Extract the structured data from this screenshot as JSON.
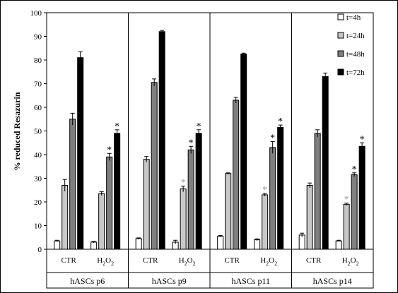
{
  "chart_data": {
    "type": "bar",
    "title": "",
    "ylabel": "% reduced Resazurin",
    "ylim": [
      0,
      100
    ],
    "yticks": [
      0,
      10,
      20,
      30,
      40,
      50,
      60,
      70,
      80,
      90,
      100
    ],
    "panels": [
      "hASCs p6",
      "hASCs p9",
      "hASCs p11",
      "hASCs p14"
    ],
    "groups": [
      "CTR",
      "H2O2"
    ],
    "series": [
      {
        "name": "t=4h",
        "color": "#ffffff",
        "values": [
          [
            3.5,
            3.0
          ],
          [
            4.5,
            3.0
          ],
          [
            5.5,
            4.0
          ],
          [
            6.0,
            3.5
          ]
        ],
        "errors": [
          [
            0.3,
            0.3
          ],
          [
            0.3,
            0.8
          ],
          [
            0.3,
            0.4
          ],
          [
            0.8,
            0.3
          ]
        ],
        "significant": [
          [
            false,
            false
          ],
          [
            false,
            false
          ],
          [
            false,
            false
          ],
          [
            false,
            false
          ]
        ]
      },
      {
        "name": "t=24h",
        "color": "#c8c8c8",
        "values": [
          [
            27.0,
            23.5
          ],
          [
            38.0,
            25.5
          ],
          [
            32.0,
            23.0
          ],
          [
            27.0,
            19.0
          ]
        ],
        "errors": [
          [
            2.5,
            0.8
          ],
          [
            1.2,
            1.2
          ],
          [
            0.3,
            0.6
          ],
          [
            1.0,
            0.5
          ]
        ],
        "significant": [
          [
            false,
            false
          ],
          [
            false,
            true
          ],
          [
            false,
            true
          ],
          [
            false,
            true
          ]
        ]
      },
      {
        "name": "t=48h",
        "color": "#7f7f7f",
        "values": [
          [
            55.0,
            39.0
          ],
          [
            70.5,
            42.0
          ],
          [
            63.0,
            43.0
          ],
          [
            49.0,
            31.5
          ]
        ],
        "errors": [
          [
            2.5,
            1.5
          ],
          [
            1.5,
            1.5
          ],
          [
            1.2,
            2.5
          ],
          [
            1.5,
            0.8
          ]
        ],
        "significant": [
          [
            false,
            true
          ],
          [
            false,
            true
          ],
          [
            false,
            true
          ],
          [
            false,
            true
          ]
        ]
      },
      {
        "name": "t=72h",
        "color": "#000000",
        "values": [
          [
            81.0,
            49.0
          ],
          [
            92.0,
            49.0
          ],
          [
            82.5,
            51.5
          ],
          [
            73.0,
            43.5
          ]
        ],
        "errors": [
          [
            2.5,
            1.5
          ],
          [
            0.5,
            1.5
          ],
          [
            0.4,
            1.0
          ],
          [
            1.5,
            1.5
          ]
        ],
        "significant": [
          [
            false,
            true
          ],
          [
            false,
            true
          ],
          [
            false,
            true
          ],
          [
            false,
            true
          ]
        ]
      }
    ],
    "legend": {
      "position": "top-right"
    },
    "group_labels": [
      "CTR",
      "H",
      "2",
      "O",
      "2"
    ],
    "significance_marker": "*",
    "colors": {
      "star_dark": "#000000",
      "star_light": "#9a9a9a",
      "frame": "#000000"
    }
  }
}
